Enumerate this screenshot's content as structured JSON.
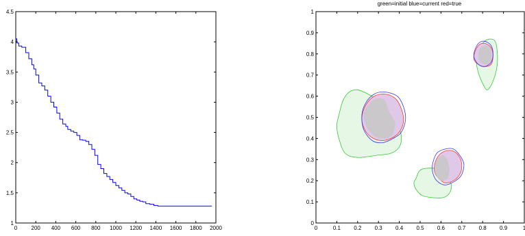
{
  "chart_data": [
    {
      "type": "line",
      "title": "",
      "xlabel": "",
      "ylabel": "",
      "xlim": [
        0,
        2000
      ],
      "ylim": [
        1,
        4.5
      ],
      "xticks": [
        "0",
        "200",
        "400",
        "600",
        "800",
        "1000",
        "1200",
        "1400",
        "1600",
        "1800",
        "2000"
      ],
      "yticks": [
        "1",
        "1.5",
        "2",
        "2.5",
        "3",
        "3.5",
        "4",
        "4.5"
      ],
      "grid": false,
      "series": [
        {
          "color": "#0000ff",
          "x": [
            0,
            10,
            30,
            60,
            100,
            130,
            160,
            180,
            200,
            230,
            260,
            290,
            320,
            350,
            380,
            410,
            440,
            470,
            500,
            520,
            550,
            580,
            610,
            640,
            670,
            700,
            730,
            760,
            790,
            820,
            850,
            880,
            910,
            940,
            970,
            1000,
            1030,
            1060,
            1090,
            1120,
            1150,
            1180,
            1210,
            1240,
            1270,
            1300,
            1340,
            1380,
            1420,
            1460,
            1500,
            1600,
            1700,
            1800,
            1900,
            1960
          ],
          "y": [
            4.05,
            3.98,
            3.93,
            3.91,
            3.82,
            3.72,
            3.62,
            3.55,
            3.45,
            3.32,
            3.27,
            3.2,
            3.1,
            3.0,
            2.92,
            2.82,
            2.72,
            2.64,
            2.6,
            2.55,
            2.52,
            2.5,
            2.45,
            2.38,
            2.37,
            2.35,
            2.3,
            2.22,
            2.12,
            1.97,
            1.9,
            1.82,
            1.77,
            1.72,
            1.67,
            1.62,
            1.58,
            1.54,
            1.5,
            1.48,
            1.44,
            1.4,
            1.38,
            1.36,
            1.35,
            1.32,
            1.31,
            1.29,
            1.28,
            1.28,
            1.28,
            1.28,
            1.28,
            1.28,
            1.28,
            1.28
          ]
        }
      ]
    },
    {
      "type": "area",
      "title": "green=initial     blue=current     red=true",
      "xlabel": "",
      "ylabel": "",
      "xlim": [
        0,
        1
      ],
      "ylim": [
        0,
        1
      ],
      "xticks": [
        "0",
        "0.1",
        "0.2",
        "0.3",
        "0.4",
        "0.5",
        "0.6",
        "0.7",
        "0.8",
        "0.9",
        "1"
      ],
      "yticks": [
        "0",
        "0.1",
        "0.2",
        "0.3",
        "0.4",
        "0.5",
        "0.6",
        "0.7",
        "0.8",
        "0.9",
        "1"
      ],
      "grid": false,
      "colors": {
        "initial": "#33cc33",
        "current": "#3333ff",
        "true": "#ff3333"
      },
      "shapes": [
        {
          "series": "initial",
          "fill": "#e6f7e6",
          "points": [
            [
              0.11,
              0.51
            ],
            [
              0.13,
              0.58
            ],
            [
              0.16,
              0.62
            ],
            [
              0.2,
              0.63
            ],
            [
              0.25,
              0.61
            ],
            [
              0.3,
              0.58
            ],
            [
              0.35,
              0.53
            ],
            [
              0.39,
              0.47
            ],
            [
              0.41,
              0.41
            ],
            [
              0.4,
              0.36
            ],
            [
              0.36,
              0.33
            ],
            [
              0.29,
              0.32
            ],
            [
              0.2,
              0.31
            ],
            [
              0.14,
              0.33
            ],
            [
              0.11,
              0.4
            ],
            [
              0.1,
              0.46
            ]
          ]
        },
        {
          "series": "initial",
          "fill": "#e6f7e6",
          "points": [
            [
              0.48,
              0.21
            ],
            [
              0.5,
              0.25
            ],
            [
              0.55,
              0.26
            ],
            [
              0.6,
              0.25
            ],
            [
              0.63,
              0.22
            ],
            [
              0.65,
              0.18
            ],
            [
              0.64,
              0.14
            ],
            [
              0.61,
              0.12
            ],
            [
              0.56,
              0.12
            ],
            [
              0.51,
              0.13
            ],
            [
              0.48,
              0.16
            ],
            [
              0.47,
              0.19
            ]
          ]
        },
        {
          "series": "initial",
          "fill": "#e6f7e6",
          "points": [
            [
              0.78,
              0.8
            ],
            [
              0.8,
              0.85
            ],
            [
              0.83,
              0.87
            ],
            [
              0.86,
              0.86
            ],
            [
              0.87,
              0.81
            ],
            [
              0.87,
              0.75
            ],
            [
              0.86,
              0.7
            ],
            [
              0.84,
              0.65
            ],
            [
              0.82,
              0.63
            ],
            [
              0.8,
              0.66
            ],
            [
              0.78,
              0.71
            ],
            [
              0.77,
              0.76
            ]
          ]
        },
        {
          "series": "true",
          "fill": "#e0c8e8",
          "points": [
            [
              0.22,
              0.5
            ],
            [
              0.24,
              0.56
            ],
            [
              0.28,
              0.6
            ],
            [
              0.33,
              0.61
            ],
            [
              0.38,
              0.59
            ],
            [
              0.41,
              0.54
            ],
            [
              0.42,
              0.48
            ],
            [
              0.4,
              0.43
            ],
            [
              0.36,
              0.4
            ],
            [
              0.31,
              0.39
            ],
            [
              0.26,
              0.41
            ],
            [
              0.23,
              0.45
            ]
          ]
        },
        {
          "series": "current",
          "fill": "none",
          "points": [
            [
              0.22,
              0.51
            ],
            [
              0.24,
              0.57
            ],
            [
              0.28,
              0.61
            ],
            [
              0.33,
              0.62
            ],
            [
              0.39,
              0.6
            ],
            [
              0.42,
              0.55
            ],
            [
              0.43,
              0.49
            ],
            [
              0.41,
              0.43
            ],
            [
              0.37,
              0.4
            ],
            [
              0.32,
              0.38
            ],
            [
              0.27,
              0.39
            ],
            [
              0.23,
              0.44
            ]
          ]
        },
        {
          "series": "true",
          "fill": "#e0c8e8",
          "points": [
            [
              0.57,
              0.28
            ],
            [
              0.59,
              0.32
            ],
            [
              0.62,
              0.34
            ],
            [
              0.66,
              0.34
            ],
            [
              0.69,
              0.31
            ],
            [
              0.7,
              0.27
            ],
            [
              0.69,
              0.23
            ],
            [
              0.66,
              0.2
            ],
            [
              0.62,
              0.19
            ],
            [
              0.59,
              0.21
            ],
            [
              0.57,
              0.24
            ]
          ]
        },
        {
          "series": "current",
          "fill": "none",
          "points": [
            [
              0.56,
              0.28
            ],
            [
              0.58,
              0.33
            ],
            [
              0.62,
              0.35
            ],
            [
              0.66,
              0.35
            ],
            [
              0.69,
              0.32
            ],
            [
              0.71,
              0.28
            ],
            [
              0.7,
              0.23
            ],
            [
              0.67,
              0.2
            ],
            [
              0.62,
              0.18
            ],
            [
              0.58,
              0.2
            ],
            [
              0.56,
              0.24
            ]
          ]
        },
        {
          "series": "true",
          "fill": "#e0c8e8",
          "points": [
            [
              0.76,
              0.8
            ],
            [
              0.78,
              0.84
            ],
            [
              0.81,
              0.85
            ],
            [
              0.84,
              0.83
            ],
            [
              0.85,
              0.79
            ],
            [
              0.84,
              0.75
            ],
            [
              0.81,
              0.74
            ],
            [
              0.78,
              0.75
            ],
            [
              0.76,
              0.77
            ]
          ]
        },
        {
          "series": "current",
          "fill": "none",
          "points": [
            [
              0.76,
              0.81
            ],
            [
              0.78,
              0.85
            ],
            [
              0.81,
              0.86
            ],
            [
              0.84,
              0.84
            ],
            [
              0.85,
              0.8
            ],
            [
              0.84,
              0.76
            ],
            [
              0.81,
              0.74
            ],
            [
              0.78,
              0.75
            ],
            [
              0.76,
              0.78
            ]
          ]
        }
      ],
      "overlaps": [
        {
          "fill": "#c8c8c8",
          "points": [
            [
              0.24,
              0.46
            ],
            [
              0.23,
              0.52
            ],
            [
              0.26,
              0.57
            ],
            [
              0.3,
              0.59
            ],
            [
              0.33,
              0.58
            ],
            [
              0.35,
              0.53
            ],
            [
              0.38,
              0.47
            ],
            [
              0.36,
              0.41
            ],
            [
              0.31,
              0.4
            ],
            [
              0.27,
              0.42
            ]
          ]
        },
        {
          "fill": "#c8c8c8",
          "points": [
            [
              0.57,
              0.25
            ],
            [
              0.58,
              0.3
            ],
            [
              0.61,
              0.32
            ],
            [
              0.63,
              0.3
            ],
            [
              0.64,
              0.25
            ],
            [
              0.63,
              0.21
            ],
            [
              0.6,
              0.2
            ],
            [
              0.58,
              0.22
            ]
          ]
        },
        {
          "fill": "#c8c8c8",
          "points": [
            [
              0.78,
              0.79
            ],
            [
              0.79,
              0.83
            ],
            [
              0.82,
              0.84
            ],
            [
              0.84,
              0.82
            ],
            [
              0.84,
              0.77
            ],
            [
              0.82,
              0.75
            ],
            [
              0.79,
              0.76
            ]
          ]
        }
      ]
    }
  ]
}
